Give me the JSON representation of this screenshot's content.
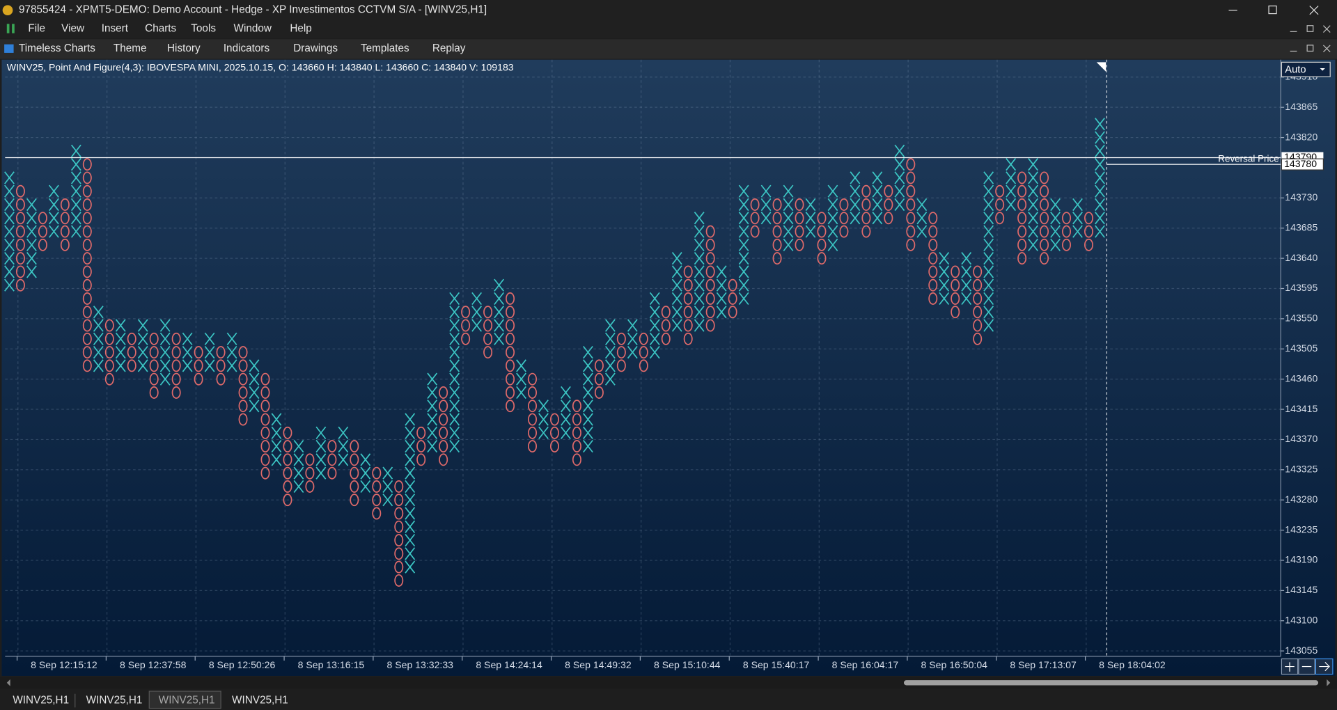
{
  "window": {
    "title": "97855424 - XPMT5-DEMO: Demo Account - Hedge - XP Investimentos CCTVM S/A - [WINV25,H1]",
    "menu": [
      "File",
      "View",
      "Insert",
      "Charts",
      "Tools",
      "Window",
      "Help"
    ],
    "toolbar": [
      "Timeless Charts",
      "Theme",
      "History",
      "Indicators",
      "Drawings",
      "Templates",
      "Replay"
    ],
    "scale_mode": "Auto",
    "tabs": [
      "WINV25,H1",
      "WINV25,H1",
      "WINV25,H1",
      "WINV25,H1"
    ]
  },
  "chart_data": {
    "type": "pnf",
    "info": "WINV25, Point And Figure(4,3): IBOVESPA MINI, 2025.10.15, O: 143660 H: 143840 L: 143660 C: 143840 V: 109183",
    "box_size": 20,
    "x_color": "#3cc6c4",
    "o_color": "#e06a6a",
    "grid": true,
    "ylim": [
      143047,
      143936
    ],
    "yticks": [
      143055,
      143100,
      143145,
      143190,
      143235,
      143280,
      143325,
      143370,
      143415,
      143460,
      143505,
      143550,
      143595,
      143640,
      143685,
      143730,
      143820,
      143865,
      143910
    ],
    "hline": 143790,
    "reversal": {
      "label": "Reversal Price",
      "value": 143780
    },
    "categories": [
      null,
      "8 Sep 12:15:12",
      null,
      null,
      null,
      null,
      null,
      null,
      null,
      "8 Sep 12:37:58",
      null,
      null,
      null,
      null,
      null,
      null,
      null,
      "8 Sep 12:50:26",
      null,
      null,
      null,
      null,
      null,
      null,
      null,
      "8 Sep 13:16:15",
      null,
      null,
      null,
      null,
      null,
      null,
      null,
      "8 Sep 13:32:33",
      null,
      null,
      null,
      null,
      null,
      null,
      null,
      "8 Sep 14:24:14",
      null,
      null,
      null,
      null,
      null,
      null,
      null,
      "8 Sep 14:49:32",
      null,
      null,
      null,
      null,
      null,
      null,
      null,
      "8 Sep 15:10:44",
      null,
      null,
      null,
      null,
      null,
      null,
      null,
      "8 Sep 15:40:17",
      null,
      null,
      null,
      null,
      null,
      null,
      null,
      "8 Sep 16:04:17",
      null,
      null,
      null,
      null,
      null,
      null,
      null,
      "8 Sep 16:50:04",
      null,
      null,
      null,
      null,
      null,
      null,
      null,
      "8 Sep 17:13:07",
      null,
      null,
      null,
      null,
      null,
      null,
      null,
      "8 Sep 18:04:02",
      null
    ],
    "columns": [
      {
        "kind": "X",
        "high": 143760,
        "low": 143600
      },
      {
        "kind": "O",
        "high": 143740,
        "low": 143600
      },
      {
        "kind": "X",
        "high": 143720,
        "low": 143620
      },
      {
        "kind": "O",
        "high": 143700,
        "low": 143660
      },
      {
        "kind": "X",
        "high": 143740,
        "low": 143680
      },
      {
        "kind": "O",
        "high": 143720,
        "low": 143660
      },
      {
        "kind": "X",
        "high": 143800,
        "low": 143680
      },
      {
        "kind": "O",
        "high": 143780,
        "low": 143480
      },
      {
        "kind": "X",
        "high": 143560,
        "low": 143480
      },
      {
        "kind": "O",
        "high": 143540,
        "low": 143460
      },
      {
        "kind": "X",
        "high": 143540,
        "low": 143480
      },
      {
        "kind": "O",
        "high": 143520,
        "low": 143480
      },
      {
        "kind": "X",
        "high": 143540,
        "low": 143480
      },
      {
        "kind": "O",
        "high": 143520,
        "low": 143440
      },
      {
        "kind": "X",
        "high": 143540,
        "low": 143460
      },
      {
        "kind": "O",
        "high": 143520,
        "low": 143440
      },
      {
        "kind": "X",
        "high": 143520,
        "low": 143480
      },
      {
        "kind": "O",
        "high": 143500,
        "low": 143460
      },
      {
        "kind": "X",
        "high": 143520,
        "low": 143480
      },
      {
        "kind": "O",
        "high": 143500,
        "low": 143460
      },
      {
        "kind": "X",
        "high": 143520,
        "low": 143480
      },
      {
        "kind": "O",
        "high": 143500,
        "low": 143400
      },
      {
        "kind": "X",
        "high": 143480,
        "low": 143420
      },
      {
        "kind": "O",
        "high": 143460,
        "low": 143320
      },
      {
        "kind": "X",
        "high": 143400,
        "low": 143340
      },
      {
        "kind": "O",
        "high": 143380,
        "low": 143280
      },
      {
        "kind": "X",
        "high": 143360,
        "low": 143300
      },
      {
        "kind": "O",
        "high": 143340,
        "low": 143300
      },
      {
        "kind": "X",
        "high": 143380,
        "low": 143320
      },
      {
        "kind": "O",
        "high": 143360,
        "low": 143320
      },
      {
        "kind": "X",
        "high": 143380,
        "low": 143340
      },
      {
        "kind": "O",
        "high": 143360,
        "low": 143280
      },
      {
        "kind": "X",
        "high": 143340,
        "low": 143300
      },
      {
        "kind": "O",
        "high": 143320,
        "low": 143260
      },
      {
        "kind": "X",
        "high": 143320,
        "low": 143280
      },
      {
        "kind": "O",
        "high": 143300,
        "low": 143160
      },
      {
        "kind": "X",
        "high": 143400,
        "low": 143180
      },
      {
        "kind": "O",
        "high": 143380,
        "low": 143340
      },
      {
        "kind": "X",
        "high": 143460,
        "low": 143360
      },
      {
        "kind": "O",
        "high": 143440,
        "low": 143340
      },
      {
        "kind": "X",
        "high": 143580,
        "low": 143360
      },
      {
        "kind": "O",
        "high": 143560,
        "low": 143520
      },
      {
        "kind": "X",
        "high": 143580,
        "low": 143540
      },
      {
        "kind": "O",
        "high": 143560,
        "low": 143500
      },
      {
        "kind": "X",
        "high": 143600,
        "low": 143520
      },
      {
        "kind": "O",
        "high": 143580,
        "low": 143420
      },
      {
        "kind": "X",
        "high": 143480,
        "low": 143440
      },
      {
        "kind": "O",
        "high": 143460,
        "low": 143360
      },
      {
        "kind": "X",
        "high": 143420,
        "low": 143380
      },
      {
        "kind": "O",
        "high": 143400,
        "low": 143360
      },
      {
        "kind": "X",
        "high": 143440,
        "low": 143380
      },
      {
        "kind": "O",
        "high": 143420,
        "low": 143340
      },
      {
        "kind": "X",
        "high": 143500,
        "low": 143360
      },
      {
        "kind": "O",
        "high": 143480,
        "low": 143440
      },
      {
        "kind": "X",
        "high": 143540,
        "low": 143460
      },
      {
        "kind": "O",
        "high": 143520,
        "low": 143480
      },
      {
        "kind": "X",
        "high": 143540,
        "low": 143500
      },
      {
        "kind": "O",
        "high": 143520,
        "low": 143480
      },
      {
        "kind": "X",
        "high": 143580,
        "low": 143500
      },
      {
        "kind": "O",
        "high": 143560,
        "low": 143520
      },
      {
        "kind": "X",
        "high": 143640,
        "low": 143540
      },
      {
        "kind": "O",
        "high": 143620,
        "low": 143520
      },
      {
        "kind": "X",
        "high": 143700,
        "low": 143540
      },
      {
        "kind": "O",
        "high": 143680,
        "low": 143540
      },
      {
        "kind": "X",
        "high": 143620,
        "low": 143560
      },
      {
        "kind": "O",
        "high": 143600,
        "low": 143560
      },
      {
        "kind": "X",
        "high": 143740,
        "low": 143580
      },
      {
        "kind": "O",
        "high": 143720,
        "low": 143680
      },
      {
        "kind": "X",
        "high": 143740,
        "low": 143700
      },
      {
        "kind": "O",
        "high": 143720,
        "low": 143640
      },
      {
        "kind": "X",
        "high": 143740,
        "low": 143660
      },
      {
        "kind": "O",
        "high": 143720,
        "low": 143660
      },
      {
        "kind": "X",
        "high": 143720,
        "low": 143680
      },
      {
        "kind": "O",
        "high": 143700,
        "low": 143640
      },
      {
        "kind": "X",
        "high": 143740,
        "low": 143660
      },
      {
        "kind": "O",
        "high": 143720,
        "low": 143680
      },
      {
        "kind": "X",
        "high": 143760,
        "low": 143700
      },
      {
        "kind": "O",
        "high": 143740,
        "low": 143680
      },
      {
        "kind": "X",
        "high": 143760,
        "low": 143700
      },
      {
        "kind": "O",
        "high": 143740,
        "low": 143700
      },
      {
        "kind": "X",
        "high": 143800,
        "low": 143720
      },
      {
        "kind": "O",
        "high": 143780,
        "low": 143660
      },
      {
        "kind": "X",
        "high": 143720,
        "low": 143680
      },
      {
        "kind": "O",
        "high": 143700,
        "low": 143580
      },
      {
        "kind": "X",
        "high": 143640,
        "low": 143580
      },
      {
        "kind": "O",
        "high": 143620,
        "low": 143560
      },
      {
        "kind": "X",
        "high": 143640,
        "low": 143580
      },
      {
        "kind": "O",
        "high": 143620,
        "low": 143520
      },
      {
        "kind": "X",
        "high": 143760,
        "low": 143540
      },
      {
        "kind": "O",
        "high": 143740,
        "low": 143700
      },
      {
        "kind": "X",
        "high": 143780,
        "low": 143720
      },
      {
        "kind": "O",
        "high": 143760,
        "low": 143640
      },
      {
        "kind": "X",
        "high": 143780,
        "low": 143660
      },
      {
        "kind": "O",
        "high": 143760,
        "low": 143640
      },
      {
        "kind": "X",
        "high": 143720,
        "low": 143660
      },
      {
        "kind": "O",
        "high": 143700,
        "low": 143660
      },
      {
        "kind": "X",
        "high": 143720,
        "low": 143680
      },
      {
        "kind": "O",
        "high": 143700,
        "low": 143660
      },
      {
        "kind": "X",
        "high": 143840,
        "low": 143680
      }
    ]
  }
}
